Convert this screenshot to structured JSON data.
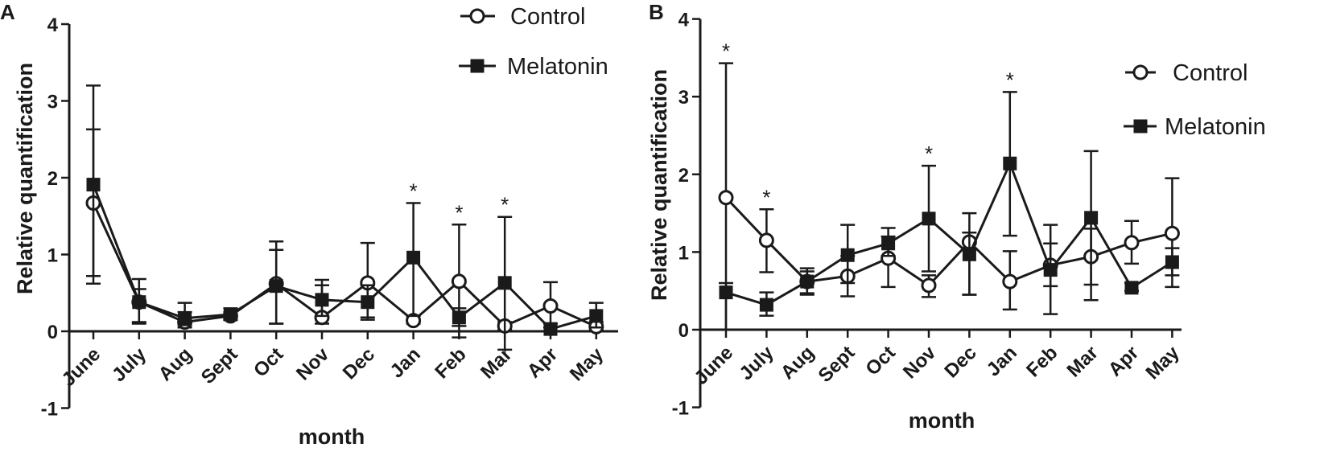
{
  "chart_data": [
    {
      "panel": "A",
      "type": "line",
      "title": "",
      "xlabel": "month",
      "ylabel": "Relative quantification",
      "ylim": [
        -1,
        4
      ],
      "yticks": [
        "-1",
        "0",
        "1",
        "2",
        "3",
        "4"
      ],
      "categories": [
        "June",
        "July",
        "Aug",
        "Sept",
        "Oct",
        "Nov",
        "Dec",
        "Jan",
        "Feb",
        "Mar",
        "Apr",
        "May"
      ],
      "legend": [
        "Control",
        "Melatonin"
      ],
      "legend_position": "top-right",
      "series": [
        {
          "name": "Control",
          "marker": "open-circle",
          "values": [
            1.67,
            0.38,
            0.12,
            0.2,
            0.62,
            0.18,
            0.63,
            0.14,
            0.65,
            0.07,
            0.33,
            0.06
          ],
          "err_high": [
            2.63,
            0.55,
            0.25,
            0.25,
            1.17,
            0.6,
            1.15,
            0.2,
            1.39,
            0.12,
            0.64,
            0.12
          ],
          "err_low": [
            0.72,
            0.12,
            0.05,
            0.15,
            0.1,
            0.1,
            0.15,
            0.1,
            -0.08,
            0.02,
            0.1,
            0.02
          ]
        },
        {
          "name": "Melatonin",
          "marker": "filled-square",
          "values": [
            1.91,
            0.38,
            0.17,
            0.22,
            0.59,
            0.41,
            0.38,
            0.96,
            0.18,
            0.63,
            0.03,
            0.2
          ],
          "err_high": [
            3.2,
            0.68,
            0.37,
            0.3,
            1.06,
            0.67,
            0.6,
            1.67,
            0.3,
            1.49,
            0.05,
            0.37
          ],
          "err_low": [
            0.62,
            0.1,
            0.08,
            0.15,
            0.1,
            0.2,
            0.18,
            0.2,
            0.07,
            -0.24,
            0.0,
            0.05
          ]
        }
      ],
      "significance_markers": [
        {
          "category": "Jan",
          "label": "*"
        },
        {
          "category": "Feb",
          "label": "*"
        },
        {
          "category": "Mar",
          "label": "*"
        }
      ]
    },
    {
      "panel": "B",
      "type": "line",
      "title": "",
      "xlabel": "month",
      "ylabel": "Relative quantification",
      "ylim": [
        -1,
        4
      ],
      "yticks": [
        "-1",
        "0",
        "1",
        "2",
        "3",
        "4"
      ],
      "categories": [
        "June",
        "July",
        "Aug",
        "Sept",
        "Oct",
        "Nov",
        "Dec",
        "Jan",
        "Feb",
        "Mar",
        "Apr",
        "May"
      ],
      "legend": [
        "Control",
        "Melatonin"
      ],
      "legend_position": "right",
      "series": [
        {
          "name": "Control",
          "marker": "open-circle",
          "values": [
            1.7,
            1.15,
            0.62,
            0.69,
            0.92,
            0.57,
            1.13,
            0.62,
            0.83,
            0.94,
            1.12,
            1.24
          ],
          "err_high": [
            3.43,
            1.55,
            0.75,
            0.95,
            1.2,
            0.7,
            1.5,
            1.01,
            1.11,
            1.3,
            1.4,
            1.95
          ],
          "err_low": [
            0.0,
            0.74,
            0.47,
            0.43,
            0.55,
            0.42,
            0.45,
            0.26,
            0.56,
            0.38,
            0.85,
            0.55
          ]
        },
        {
          "name": "Melatonin",
          "marker": "filled-square",
          "values": [
            0.48,
            0.32,
            0.62,
            0.96,
            1.11,
            1.43,
            0.97,
            2.14,
            0.77,
            1.44,
            0.54,
            0.87
          ],
          "err_high": [
            0.6,
            0.48,
            0.79,
            1.35,
            1.31,
            2.11,
            1.25,
            3.06,
            1.35,
            2.3,
            0.6,
            1.05
          ],
          "err_low": [
            0.0,
            0.18,
            0.45,
            0.6,
            0.95,
            0.75,
            0.45,
            1.21,
            0.2,
            0.58,
            0.5,
            0.7
          ]
        }
      ],
      "significance_markers": [
        {
          "category": "June",
          "label": "*"
        },
        {
          "category": "July",
          "label": "*"
        },
        {
          "category": "Nov",
          "label": "*"
        },
        {
          "category": "Jan",
          "label": "*"
        }
      ]
    }
  ]
}
